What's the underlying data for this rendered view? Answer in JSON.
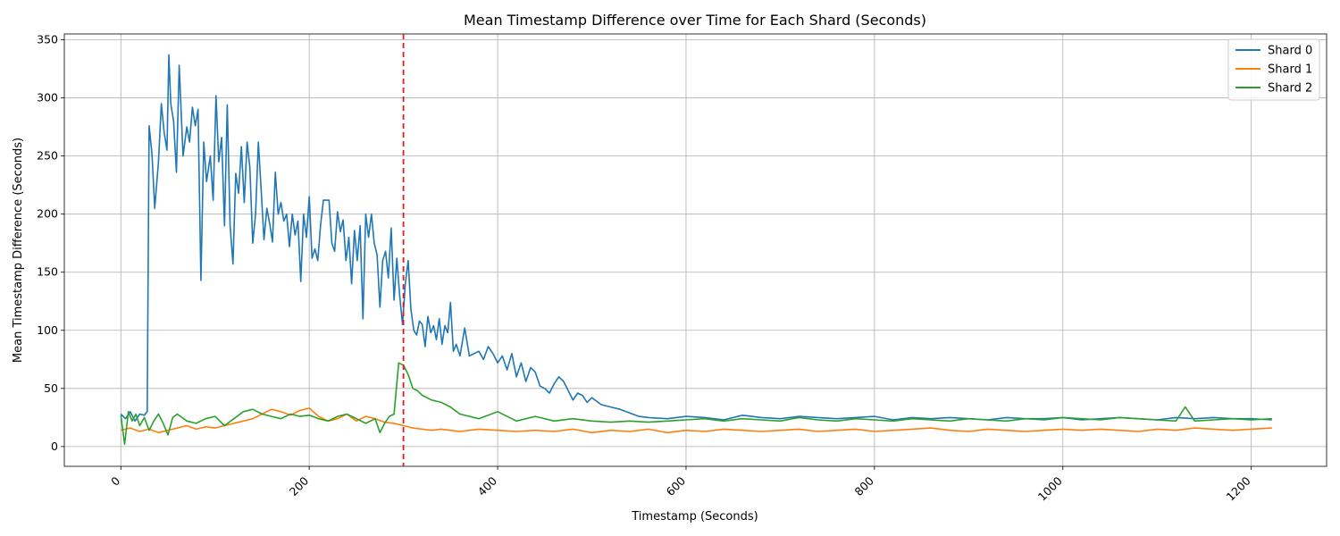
{
  "chart_data": {
    "type": "line",
    "title": "Mean Timestamp Difference over Time for Each Shard (Seconds)",
    "xlabel": "Timestamp (Seconds)",
    "ylabel": "Mean Timestamp Difference (Seconds)",
    "xlim": [
      -60,
      1280
    ],
    "ylim": [
      -17,
      355
    ],
    "x_ticks": [
      0,
      200,
      400,
      600,
      800,
      1000,
      1200
    ],
    "x_tick_labels": [
      "0",
      "200",
      "400",
      "600",
      "800",
      "1000",
      "1200"
    ],
    "y_ticks": [
      0,
      50,
      100,
      150,
      200,
      250,
      300,
      350
    ],
    "y_tick_labels": [
      "0",
      "50",
      "100",
      "150",
      "200",
      "250",
      "300",
      "350"
    ],
    "grid": true,
    "legend_position": "top-right",
    "x_tick_rotation_deg": 45,
    "vertical_marker": {
      "x": 300,
      "color": "#e31a1c",
      "style": "dashed"
    },
    "series": [
      {
        "name": "Shard 0",
        "color": "#1f77b4",
        "x": [
          0,
          5,
          10,
          15,
          20,
          25,
          28,
          30,
          33,
          36,
          40,
          43,
          46,
          49,
          51,
          53,
          56,
          59,
          62,
          66,
          70,
          73,
          76,
          79,
          82,
          85,
          88,
          91,
          95,
          98,
          101,
          104,
          107,
          110,
          113,
          116,
          119,
          122,
          125,
          128,
          131,
          134,
          137,
          140,
          143,
          146,
          149,
          152,
          155,
          158,
          161,
          164,
          167,
          170,
          173,
          176,
          179,
          182,
          185,
          188,
          191,
          194,
          197,
          200,
          203,
          206,
          209,
          212,
          215,
          218,
          221,
          224,
          227,
          230,
          233,
          236,
          239,
          242,
          245,
          248,
          251,
          254,
          257,
          260,
          263,
          266,
          269,
          272,
          275,
          278,
          281,
          284,
          287,
          290,
          293,
          296,
          299,
          302,
          305,
          308,
          311,
          314,
          317,
          320,
          323,
          326,
          329,
          332,
          335,
          338,
          341,
          344,
          347,
          350,
          353,
          356,
          360,
          365,
          370,
          375,
          380,
          385,
          390,
          395,
          400,
          405,
          410,
          415,
          420,
          425,
          430,
          435,
          440,
          445,
          450,
          455,
          460,
          465,
          470,
          475,
          480,
          485,
          490,
          495,
          500,
          510,
          520,
          530,
          540,
          550,
          560,
          580,
          600,
          620,
          640,
          660,
          680,
          700,
          720,
          740,
          760,
          780,
          800,
          820,
          840,
          860,
          880,
          900,
          920,
          940,
          960,
          980,
          1000,
          1020,
          1040,
          1060,
          1080,
          1100,
          1120,
          1140,
          1160,
          1180,
          1200,
          1222
        ],
        "y": [
          28,
          24,
          30,
          22,
          28,
          27,
          30,
          276,
          252,
          205,
          245,
          295,
          270,
          255,
          337,
          295,
          280,
          236,
          328,
          250,
          275,
          262,
          292,
          276,
          290,
          143,
          262,
          228,
          250,
          212,
          302,
          245,
          266,
          190,
          294,
          190,
          157,
          235,
          218,
          258,
          210,
          262,
          240,
          175,
          200,
          262,
          220,
          178,
          205,
          192,
          176,
          236,
          200,
          210,
          194,
          200,
          172,
          200,
          182,
          194,
          142,
          200,
          180,
          215,
          162,
          170,
          160,
          190,
          212,
          212,
          212,
          175,
          168,
          202,
          185,
          195,
          160,
          180,
          140,
          186,
          160,
          190,
          110,
          200,
          180,
          200,
          175,
          165,
          120,
          160,
          168,
          145,
          188,
          126,
          162,
          130,
          105,
          140,
          160,
          118,
          100,
          96,
          108,
          105,
          86,
          112,
          98,
          104,
          92,
          110,
          88,
          104,
          98,
          124,
          82,
          88,
          78,
          102,
          78,
          80,
          82,
          75,
          86,
          80,
          72,
          78,
          66,
          80,
          60,
          72,
          56,
          68,
          64,
          52,
          50,
          46,
          54,
          60,
          56,
          48,
          40,
          46,
          44,
          38,
          42,
          36,
          34,
          32,
          29,
          26,
          25,
          24,
          26,
          25,
          23,
          27,
          25,
          24,
          26,
          25,
          24,
          25,
          26,
          23,
          25,
          24,
          25,
          24,
          23,
          25,
          24,
          24,
          25,
          23,
          24,
          25,
          24,
          23,
          25,
          24,
          25,
          24,
          24,
          23
        ]
      },
      {
        "name": "Shard 1",
        "color": "#ff7f0e",
        "x": [
          0,
          10,
          20,
          30,
          40,
          50,
          60,
          70,
          80,
          90,
          100,
          110,
          120,
          130,
          140,
          150,
          160,
          170,
          180,
          190,
          200,
          210,
          220,
          230,
          240,
          250,
          260,
          270,
          280,
          290,
          300,
          310,
          320,
          330,
          340,
          350,
          360,
          380,
          400,
          420,
          440,
          460,
          480,
          500,
          520,
          540,
          560,
          580,
          600,
          620,
          640,
          660,
          680,
          700,
          720,
          740,
          760,
          780,
          800,
          820,
          840,
          860,
          880,
          900,
          920,
          940,
          960,
          980,
          1000,
          1020,
          1040,
          1060,
          1080,
          1100,
          1120,
          1140,
          1160,
          1180,
          1200,
          1222
        ],
        "y": [
          14,
          16,
          13,
          15,
          12,
          14,
          16,
          18,
          15,
          17,
          16,
          18,
          20,
          22,
          24,
          28,
          32,
          30,
          27,
          31,
          33,
          26,
          22,
          24,
          28,
          22,
          26,
          24,
          21,
          20,
          18,
          16,
          15,
          14,
          15,
          14,
          13,
          15,
          14,
          13,
          14,
          13,
          15,
          12,
          14,
          13,
          15,
          12,
          14,
          13,
          15,
          14,
          13,
          14,
          15,
          13,
          14,
          15,
          13,
          14,
          15,
          16,
          14,
          13,
          15,
          14,
          13,
          14,
          15,
          14,
          15,
          14,
          13,
          15,
          14,
          16,
          15,
          14,
          15,
          16
        ]
      },
      {
        "name": "Shard 2",
        "color": "#2ca02c",
        "x": [
          0,
          4,
          8,
          12,
          16,
          20,
          25,
          30,
          35,
          40,
          45,
          50,
          55,
          60,
          70,
          80,
          90,
          100,
          110,
          120,
          130,
          140,
          150,
          160,
          170,
          180,
          190,
          200,
          210,
          220,
          230,
          240,
          250,
          260,
          270,
          275,
          280,
          285,
          290,
          295,
          300,
          305,
          310,
          315,
          320,
          325,
          330,
          340,
          350,
          360,
          380,
          400,
          420,
          440,
          460,
          480,
          500,
          520,
          540,
          560,
          580,
          600,
          620,
          640,
          660,
          680,
          700,
          720,
          740,
          760,
          780,
          800,
          820,
          840,
          860,
          880,
          900,
          920,
          940,
          960,
          980,
          1000,
          1020,
          1040,
          1060,
          1080,
          1100,
          1120,
          1130,
          1140,
          1160,
          1180,
          1200,
          1222
        ],
        "y": [
          27,
          2,
          30,
          22,
          28,
          18,
          25,
          14,
          22,
          28,
          20,
          10,
          25,
          28,
          22,
          20,
          24,
          26,
          18,
          24,
          30,
          32,
          28,
          26,
          24,
          28,
          26,
          27,
          24,
          22,
          26,
          28,
          24,
          20,
          24,
          12,
          20,
          26,
          28,
          72,
          70,
          62,
          50,
          48,
          44,
          42,
          40,
          38,
          34,
          28,
          24,
          30,
          22,
          26,
          22,
          24,
          22,
          21,
          22,
          21,
          22,
          23,
          24,
          22,
          24,
          23,
          22,
          25,
          23,
          22,
          24,
          23,
          22,
          24,
          23,
          22,
          24,
          23,
          22,
          24,
          23,
          25,
          24,
          23,
          25,
          24,
          23,
          22,
          34,
          22,
          23,
          24,
          23,
          24
        ]
      }
    ]
  }
}
